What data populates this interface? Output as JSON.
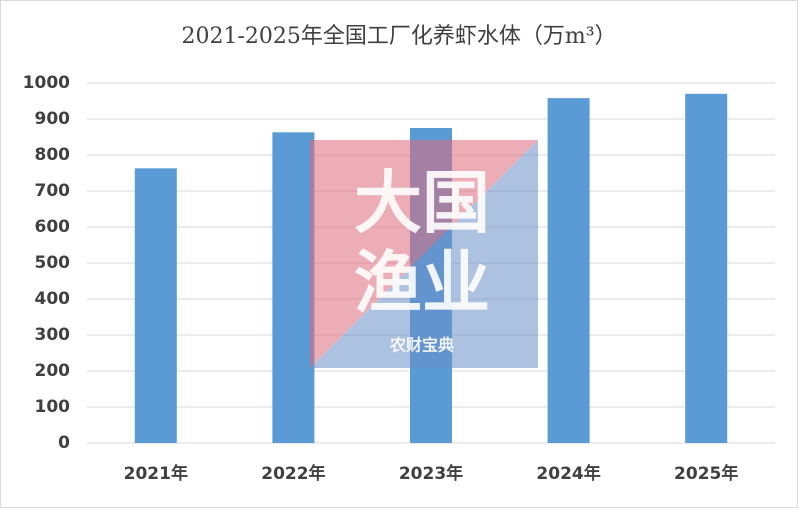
{
  "chart_data": {
    "type": "bar",
    "title": "2021-2025年全国工厂化养虾水体（万m³）",
    "categories": [
      "2021年",
      "2022年",
      "2023年",
      "2024年",
      "2025年"
    ],
    "values": [
      763,
      863,
      875,
      958,
      970
    ],
    "color": "#5b9bd5",
    "ylim": [
      0,
      1000
    ],
    "yticks": [
      0,
      100,
      200,
      300,
      400,
      500,
      600,
      700,
      800,
      900,
      1000
    ],
    "grid": true,
    "watermark": {
      "line1": "大国",
      "line2": "渔业",
      "brand": "农财宝典"
    }
  }
}
